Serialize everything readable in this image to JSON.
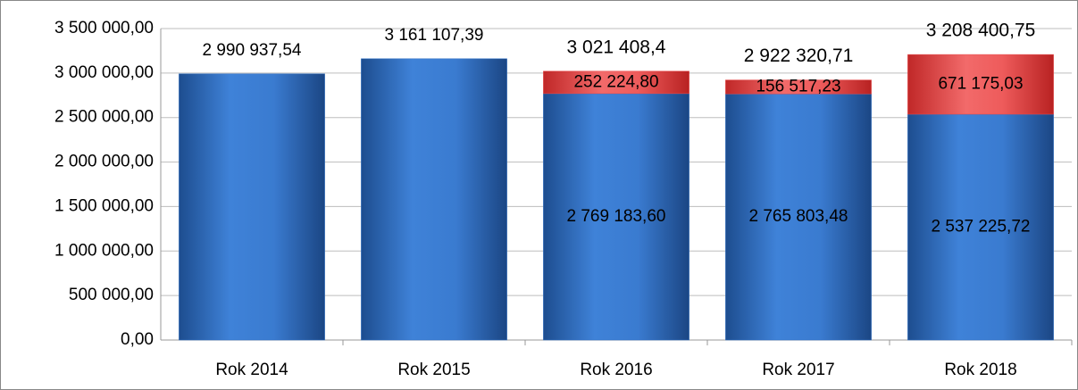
{
  "chart_data": {
    "type": "stacked_bar",
    "categories": [
      "Rok 2014",
      "Rok 2015",
      "Rok 2016",
      "Rok 2017",
      "Rok 2018"
    ],
    "series": [
      {
        "color": "#2e6fc4",
        "values": [
          2990937.54,
          3161107.39,
          2769183.6,
          2765803.48,
          2537225.72
        ],
        "value_labels": [
          "2 990 937,54",
          "3 161 107,39",
          "2 769 183,60",
          "2 765 803,48",
          "2 537 225,72"
        ]
      },
      {
        "color": "#e84a4a",
        "values": [
          null,
          null,
          252224.8,
          156517.23,
          671175.03
        ],
        "value_labels": [
          null,
          null,
          "252 224,80",
          "156 517,23",
          "671 175,03"
        ]
      }
    ],
    "totals": [
      null,
      null,
      3021408.4,
      2922320.71,
      3208400.75
    ],
    "total_labels": [
      null,
      null,
      "3 021 408,4",
      "2 922 320,71",
      "3 208 400,75"
    ],
    "ylim": [
      0,
      3500000
    ],
    "yticks": [
      {
        "value": 0,
        "label": "0,00"
      },
      {
        "value": 500000,
        "label": "500 000,00"
      },
      {
        "value": 1000000,
        "label": "1 000 000,00"
      },
      {
        "value": 1500000,
        "label": "1 500 000,00"
      },
      {
        "value": 2000000,
        "label": "2 000 000,00"
      },
      {
        "value": 2500000,
        "label": "2 500 000,00"
      },
      {
        "value": 3000000,
        "label": "3 000 000,00"
      },
      {
        "value": 3500000,
        "label": "3 500 000,00"
      }
    ],
    "grid": true
  }
}
